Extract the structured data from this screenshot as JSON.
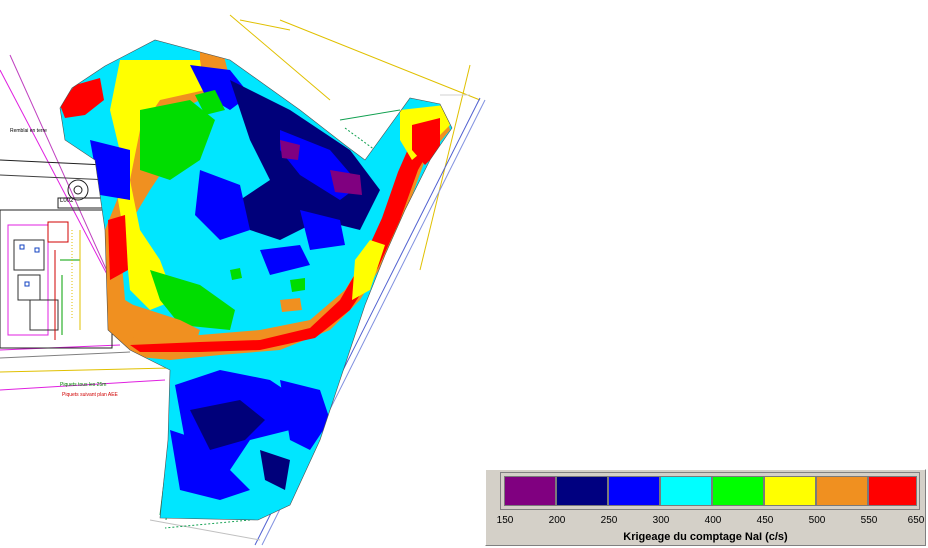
{
  "map": {
    "building_label": "L002",
    "site_note": "Remblai en terre",
    "legend_notes": [
      "Piquets tous les 25m",
      "Piquets suivant plan AEE"
    ],
    "zones": [
      {
        "name": "violet",
        "min": 150,
        "max": 200,
        "color": "#800080"
      },
      {
        "name": "dark-blue",
        "min": 200,
        "max": 250,
        "color": "#00007a"
      },
      {
        "name": "blue",
        "min": 250,
        "max": 300,
        "color": "#0000ff"
      },
      {
        "name": "cyan",
        "min": 300,
        "max": 400,
        "color": "#00e6ff"
      },
      {
        "name": "green",
        "min": 400,
        "max": 450,
        "color": "#00dd00"
      },
      {
        "name": "yellow",
        "min": 450,
        "max": 500,
        "color": "#ffff00"
      },
      {
        "name": "orange",
        "min": 500,
        "max": 550,
        "color": "#f09020"
      },
      {
        "name": "red",
        "min": 550,
        "max": 650,
        "color": "#ff0000"
      }
    ]
  },
  "legend": {
    "title": "Krigeage du comptage NaI (c/s)",
    "ticks": [
      "150",
      "200",
      "250",
      "300",
      "400",
      "450",
      "500",
      "550",
      "650"
    ],
    "colors": [
      "#800080",
      "#000080",
      "#0000ff",
      "#00ffff",
      "#00ff00",
      "#ffff00",
      "#f09020",
      "#ff0000"
    ]
  }
}
